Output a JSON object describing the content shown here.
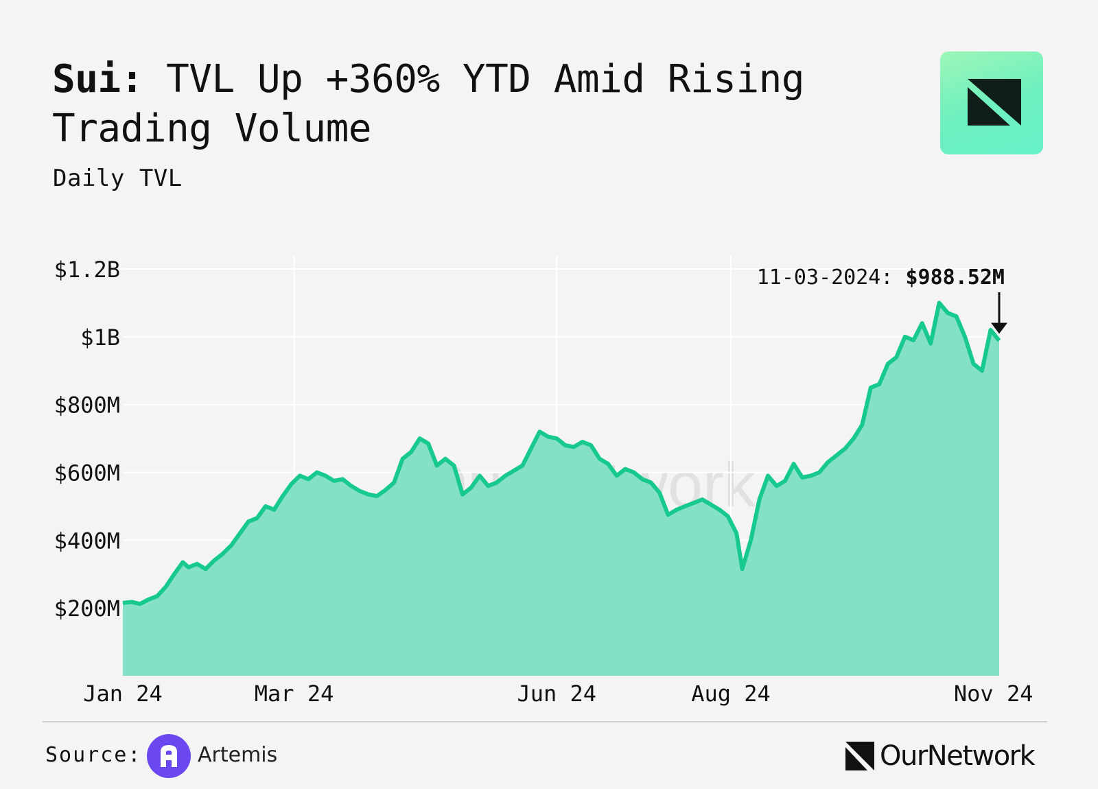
{
  "header": {
    "title_bold": "Sui:",
    "title_rest": " TVL Up +360% YTD Amid Rising Trading Volume",
    "subtitle": "Daily TVL"
  },
  "footer": {
    "source_label": "Source:",
    "source_name": "Artemis",
    "brand_name": "OurNetwork",
    "watermark": "OurNetwork"
  },
  "colors": {
    "line": "#17c98f",
    "area": "#7ddfc4",
    "grid": "#ffffff",
    "background": "#f4f4f4",
    "badge_mark": "#0f1e18",
    "artemis": "#6b47f0"
  },
  "icons": {
    "brand_badge": "ournetwork-logo-icon",
    "source_logo": "artemis-logo-icon",
    "annotation_arrow": "arrow-down-icon"
  },
  "chart_data": {
    "type": "area",
    "title": "",
    "xlabel": "",
    "ylabel": "",
    "x_range": [
      "2024-01-01",
      "2024-11-03"
    ],
    "ylim": [
      0,
      1200000000
    ],
    "yticks": [
      {
        "value": 200000000,
        "label": "$200M"
      },
      {
        "value": 400000000,
        "label": "$400M"
      },
      {
        "value": 600000000,
        "label": "$600M"
      },
      {
        "value": 800000000,
        "label": "$800M"
      },
      {
        "value": 1000000000,
        "label": "$1B"
      },
      {
        "value": 1200000000,
        "label": "$1.2B"
      }
    ],
    "xticks": [
      {
        "date": "2024-01-01",
        "label": "Jan 24"
      },
      {
        "date": "2024-03-01",
        "label": "Mar 24"
      },
      {
        "date": "2024-06-01",
        "label": "Jun 24"
      },
      {
        "date": "2024-08-01",
        "label": "Aug 24"
      },
      {
        "date": "2024-11-01",
        "label": "Nov 24"
      }
    ],
    "grid": true,
    "annotation": {
      "date": "2024-11-03",
      "label": "11-03-2024:",
      "value_label": "$988.52M",
      "value": 988520000
    },
    "series": [
      {
        "points": [
          [
            "2024-01-01",
            215000000
          ],
          [
            "2024-01-04",
            218000000
          ],
          [
            "2024-01-07",
            212000000
          ],
          [
            "2024-01-10",
            225000000
          ],
          [
            "2024-01-13",
            235000000
          ],
          [
            "2024-01-16",
            262000000
          ],
          [
            "2024-01-19",
            300000000
          ],
          [
            "2024-01-22",
            335000000
          ],
          [
            "2024-01-24",
            320000000
          ],
          [
            "2024-01-27",
            330000000
          ],
          [
            "2024-01-30",
            315000000
          ],
          [
            "2024-02-02",
            340000000
          ],
          [
            "2024-02-05",
            360000000
          ],
          [
            "2024-02-08",
            385000000
          ],
          [
            "2024-02-11",
            420000000
          ],
          [
            "2024-02-14",
            455000000
          ],
          [
            "2024-02-17",
            465000000
          ],
          [
            "2024-02-20",
            500000000
          ],
          [
            "2024-02-23",
            490000000
          ],
          [
            "2024-02-26",
            530000000
          ],
          [
            "2024-02-29",
            565000000
          ],
          [
            "2024-03-03",
            590000000
          ],
          [
            "2024-03-06",
            580000000
          ],
          [
            "2024-03-09",
            600000000
          ],
          [
            "2024-03-12",
            590000000
          ],
          [
            "2024-03-15",
            575000000
          ],
          [
            "2024-03-18",
            580000000
          ],
          [
            "2024-03-21",
            560000000
          ],
          [
            "2024-03-24",
            545000000
          ],
          [
            "2024-03-27",
            535000000
          ],
          [
            "2024-03-30",
            530000000
          ],
          [
            "2024-04-02",
            548000000
          ],
          [
            "2024-04-05",
            570000000
          ],
          [
            "2024-04-08",
            640000000
          ],
          [
            "2024-04-11",
            660000000
          ],
          [
            "2024-04-14",
            700000000
          ],
          [
            "2024-04-17",
            685000000
          ],
          [
            "2024-04-20",
            620000000
          ],
          [
            "2024-04-23",
            640000000
          ],
          [
            "2024-04-26",
            620000000
          ],
          [
            "2024-04-29",
            535000000
          ],
          [
            "2024-05-02",
            555000000
          ],
          [
            "2024-05-05",
            590000000
          ],
          [
            "2024-05-08",
            560000000
          ],
          [
            "2024-05-11",
            570000000
          ],
          [
            "2024-05-14",
            590000000
          ],
          [
            "2024-05-17",
            605000000
          ],
          [
            "2024-05-20",
            620000000
          ],
          [
            "2024-05-23",
            670000000
          ],
          [
            "2024-05-26",
            720000000
          ],
          [
            "2024-05-29",
            705000000
          ],
          [
            "2024-06-01",
            700000000
          ],
          [
            "2024-06-04",
            680000000
          ],
          [
            "2024-06-07",
            675000000
          ],
          [
            "2024-06-10",
            690000000
          ],
          [
            "2024-06-13",
            680000000
          ],
          [
            "2024-06-16",
            640000000
          ],
          [
            "2024-06-19",
            625000000
          ],
          [
            "2024-06-22",
            590000000
          ],
          [
            "2024-06-25",
            610000000
          ],
          [
            "2024-06-28",
            600000000
          ],
          [
            "2024-07-01",
            580000000
          ],
          [
            "2024-07-04",
            570000000
          ],
          [
            "2024-07-07",
            540000000
          ],
          [
            "2024-07-10",
            475000000
          ],
          [
            "2024-07-13",
            490000000
          ],
          [
            "2024-07-16",
            500000000
          ],
          [
            "2024-07-19",
            510000000
          ],
          [
            "2024-07-22",
            520000000
          ],
          [
            "2024-07-25",
            505000000
          ],
          [
            "2024-07-28",
            490000000
          ],
          [
            "2024-07-31",
            470000000
          ],
          [
            "2024-08-03",
            420000000
          ],
          [
            "2024-08-05",
            315000000
          ],
          [
            "2024-08-08",
            400000000
          ],
          [
            "2024-08-11",
            520000000
          ],
          [
            "2024-08-14",
            590000000
          ],
          [
            "2024-08-17",
            560000000
          ],
          [
            "2024-08-20",
            575000000
          ],
          [
            "2024-08-23",
            625000000
          ],
          [
            "2024-08-26",
            585000000
          ],
          [
            "2024-08-29",
            590000000
          ],
          [
            "2024-09-01",
            600000000
          ],
          [
            "2024-09-04",
            630000000
          ],
          [
            "2024-09-07",
            650000000
          ],
          [
            "2024-09-10",
            670000000
          ],
          [
            "2024-09-13",
            700000000
          ],
          [
            "2024-09-16",
            740000000
          ],
          [
            "2024-09-19",
            850000000
          ],
          [
            "2024-09-22",
            860000000
          ],
          [
            "2024-09-25",
            920000000
          ],
          [
            "2024-09-28",
            940000000
          ],
          [
            "2024-10-01",
            1000000000
          ],
          [
            "2024-10-04",
            990000000
          ],
          [
            "2024-10-07",
            1040000000
          ],
          [
            "2024-10-10",
            980000000
          ],
          [
            "2024-10-13",
            1100000000
          ],
          [
            "2024-10-16",
            1070000000
          ],
          [
            "2024-10-19",
            1060000000
          ],
          [
            "2024-10-22",
            1000000000
          ],
          [
            "2024-10-25",
            920000000
          ],
          [
            "2024-10-28",
            900000000
          ],
          [
            "2024-10-31",
            1020000000
          ],
          [
            "2024-11-03",
            988520000
          ]
        ]
      }
    ]
  }
}
